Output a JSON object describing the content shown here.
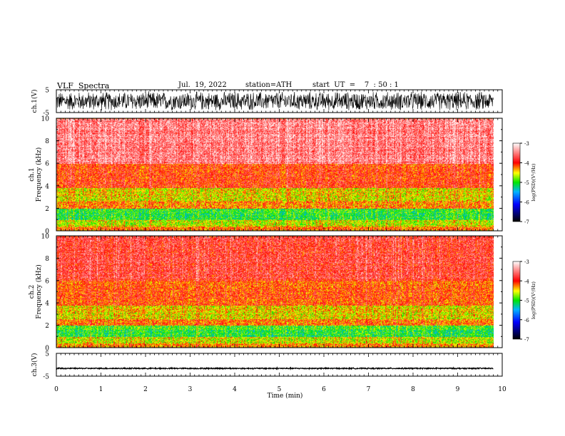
{
  "header": {
    "title": "VLF  Spectra",
    "date": "Jul.  19, 2022",
    "station": "station=ATH",
    "start": "start  UT  =    7  : 50 : 1"
  },
  "chart_data": [
    {
      "type": "line",
      "panel": "ch1-waveform",
      "ylabel": "ch.1(V)",
      "ylim": [
        -5,
        5
      ],
      "yticks": [
        "5",
        "-5"
      ],
      "xlim": [
        0,
        10
      ],
      "data_end_min": 9.8,
      "amplitude_envelope_V": 4.5
    },
    {
      "type": "heatmap",
      "panel": "ch1-spectrogram",
      "ylabel": "ch.1 Frequency  (kHz)",
      "ylim": [
        0,
        10
      ],
      "yticks": [
        "0",
        "2",
        "4",
        "6",
        "8",
        "10"
      ],
      "xlim": [
        0,
        10
      ],
      "data_end_min": 9.8,
      "bands_log_psd": [
        {
          "f0": 0,
          "f1": 0.4,
          "value": -4.2
        },
        {
          "f0": 0.4,
          "f1": 1.0,
          "value": -4.6
        },
        {
          "f0": 1.0,
          "f1": 2.0,
          "value": -5.0
        },
        {
          "f0": 2.0,
          "f1": 2.6,
          "value": -4.2
        },
        {
          "f0": 2.6,
          "f1": 3.8,
          "value": -4.5
        },
        {
          "f0": 3.8,
          "f1": 6.0,
          "value": -4.0
        },
        {
          "f0": 6.0,
          "f1": 10.0,
          "value": -3.5
        }
      ],
      "colorbar": {
        "label": "log(PSD)(V²/Hz)",
        "range": [
          -7,
          -3
        ],
        "ticks": [
          "-3",
          "-4",
          "-5",
          "-6",
          "-7"
        ]
      }
    },
    {
      "type": "heatmap",
      "panel": "ch2-spectrogram",
      "ylabel": "ch.2 Frequency  (kHz)",
      "ylim": [
        0,
        10
      ],
      "yticks": [
        "0",
        "2",
        "4",
        "6",
        "8",
        "10"
      ],
      "xlim": [
        0,
        10
      ],
      "data_end_min": 9.8,
      "bands_log_psd": [
        {
          "f0": 0,
          "f1": 0.4,
          "value": -4.3
        },
        {
          "f0": 0.4,
          "f1": 1.0,
          "value": -4.6
        },
        {
          "f0": 1.0,
          "f1": 2.0,
          "value": -5.0
        },
        {
          "f0": 2.0,
          "f1": 2.6,
          "value": -4.2
        },
        {
          "f0": 2.6,
          "f1": 3.8,
          "value": -4.5
        },
        {
          "f0": 3.8,
          "f1": 6.0,
          "value": -4.1
        },
        {
          "f0": 6.0,
          "f1": 10.0,
          "value": -3.8
        }
      ],
      "colorbar": {
        "label": "log(PSD)(V²/Hz)",
        "range": [
          -7,
          -3
        ],
        "ticks": [
          "-3",
          "-4",
          "-5",
          "-6",
          "-7"
        ]
      }
    },
    {
      "type": "line",
      "panel": "ch3-waveform",
      "ylabel": "ch.3(V)",
      "ylim": [
        -5,
        5
      ],
      "yticks": [
        "5",
        "-5"
      ],
      "xlim": [
        0,
        10
      ],
      "data_end_min": 9.8,
      "baseline_V": -1.6,
      "amplitude_envelope_V": 0.3
    }
  ],
  "xaxis": {
    "label": "Time  (min)",
    "ticks": [
      "0",
      "1",
      "2",
      "3",
      "4",
      "5",
      "6",
      "7",
      "8",
      "9",
      "10"
    ]
  },
  "colors": {
    "waveform": "#000000",
    "frame": "#000000",
    "colormap": [
      "#000000",
      "#0000ff",
      "#00b4ff",
      "#00e600",
      "#ffff00",
      "#ff0000",
      "#ffffff"
    ]
  }
}
